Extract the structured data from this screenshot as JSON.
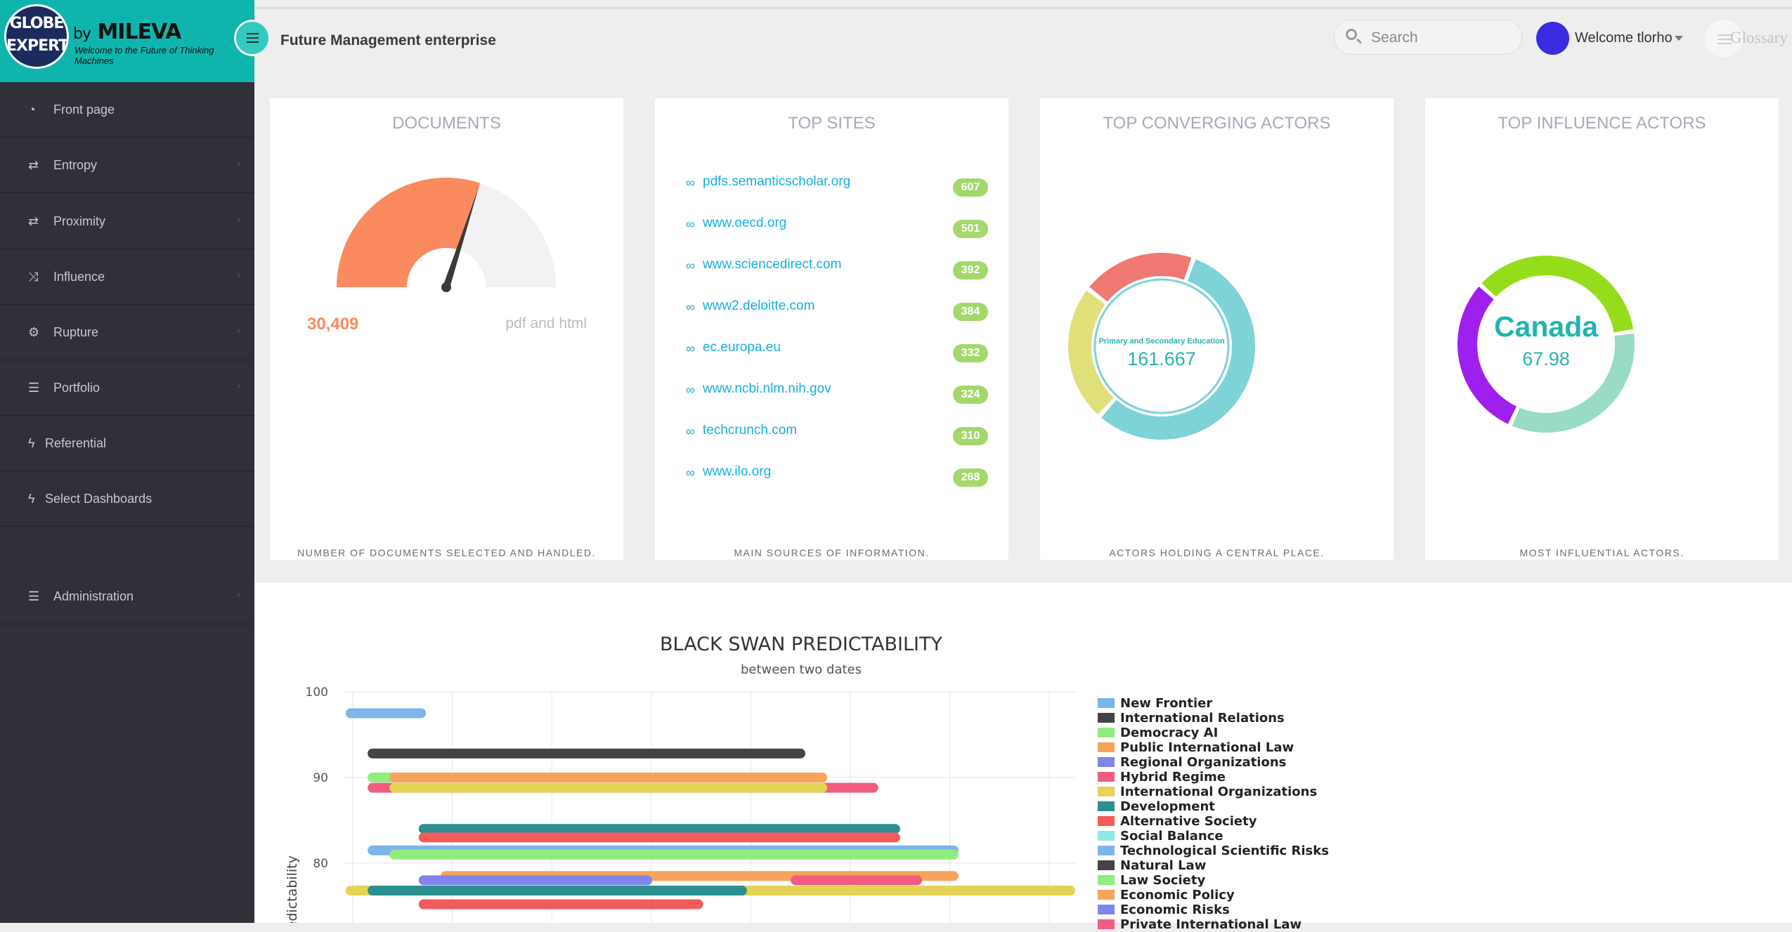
{
  "logo": {
    "globe_text_top": "GLOBE",
    "globe_text_bottom": "EXPERT",
    "by": "by",
    "brand": "MILEVA",
    "tagline": "Welcome to the Future of Thinking Machines"
  },
  "sidebar": {
    "items": [
      {
        "label": "Front page",
        "icon": "dashboard-icon",
        "chevron": false
      },
      {
        "label": "Entropy",
        "icon": "retweet-icon",
        "chevron": true
      },
      {
        "label": "Proximity",
        "icon": "retweet-icon",
        "chevron": true
      },
      {
        "label": "Influence",
        "icon": "random-icon",
        "chevron": true
      },
      {
        "label": "Rupture",
        "icon": "cogs-icon",
        "chevron": true
      },
      {
        "label": "Portfolio",
        "icon": "server-icon",
        "chevron": true
      },
      {
        "label": "Referential",
        "icon": "bolt-icon",
        "chevron": false
      },
      {
        "label": "Select Dashboards",
        "icon": "bolt-icon",
        "chevron": false
      },
      {
        "label": "Administration",
        "icon": "server-icon",
        "chevron": true
      }
    ]
  },
  "header": {
    "title": "Future Management enterprise",
    "search_placeholder": "Search",
    "welcome": "Welcome tlorho",
    "glossary": "Glossary"
  },
  "cards": {
    "documents": {
      "title": "DOCUMENTS",
      "value": "30,409",
      "unit": "pdf and html",
      "footer": "NUMBER OF DOCUMENTS SELECTED AND HANDLED.",
      "gauge_fraction": 0.6
    },
    "top_sites": {
      "title": "TOP SITES",
      "footer": "MAIN SOURCES OF INFORMATION.",
      "sites": [
        {
          "name": "pdfs.semanticscholar.org",
          "count": "607"
        },
        {
          "name": "www.oecd.org",
          "count": "501"
        },
        {
          "name": "www.sciencedirect.com",
          "count": "392"
        },
        {
          "name": "www2.deloitte.com",
          "count": "384"
        },
        {
          "name": "ec.europa.eu",
          "count": "332"
        },
        {
          "name": "www.ncbi.nlm.nih.gov",
          "count": "324"
        },
        {
          "name": "techcrunch.com",
          "count": "310"
        },
        {
          "name": "www.ilo.org",
          "count": "268"
        }
      ]
    },
    "converging": {
      "title": "TOP CONVERGING ACTORS",
      "center_label": "Primary and Secondary Education",
      "center_value": "161.667",
      "footer": "ACTORS HOLDING A CENTRAL PLACE.",
      "slices": [
        {
          "value": 0.56,
          "color": "#7dd3d6"
        },
        {
          "value": 0.24,
          "color": "#dfe07a"
        },
        {
          "value": 0.2,
          "color": "#ef7872"
        }
      ]
    },
    "influence": {
      "title": "TOP INFLUENCE ACTORS",
      "center_label": "Canada",
      "center_value": "67.98",
      "footer": "MOST INFLUENTIAL ACTORS.",
      "slices": [
        {
          "value": 0.36,
          "color": "#95dd1a"
        },
        {
          "value": 0.34,
          "color": "#99dcc4"
        },
        {
          "value": 0.3,
          "color": "#9f20ee"
        }
      ]
    }
  },
  "chart_data": {
    "type": "bar",
    "orientation": "horizontal-range",
    "title": "BLACK SWAN PREDICTABILITY",
    "subtitle": "between two dates",
    "ylabel": "Predictability",
    "yticks": [
      "100",
      "90",
      "80"
    ],
    "ylim": [
      70,
      100
    ],
    "grid": true,
    "legend_position": "right",
    "series": [
      {
        "name": "New Frontier",
        "color": "#7db4ec",
        "ranges": [
          [
            0,
            0.11,
            97.5
          ],
          [
            0.03,
            0.84,
            81.5
          ]
        ]
      },
      {
        "name": "International Relations",
        "color": "#434348",
        "ranges": [
          [
            0.03,
            0.63,
            92.8
          ]
        ]
      },
      {
        "name": "Democracy AI",
        "color": "#90ed7d",
        "ranges": [
          [
            0.03,
            0.36,
            90
          ],
          [
            0.06,
            0.84,
            81
          ]
        ]
      },
      {
        "name": "Public International Law",
        "color": "#f7a35c",
        "ranges": [
          [
            0.06,
            0.66,
            90
          ],
          [
            0.13,
            0.84,
            78.5
          ]
        ]
      },
      {
        "name": "Regional Organizations",
        "color": "#8085e9",
        "ranges": [
          [
            0.1,
            0.42,
            78
          ]
        ]
      },
      {
        "name": "Hybrid Regime",
        "color": "#f15c80",
        "ranges": [
          [
            0.03,
            0.73,
            88.8
          ],
          [
            0.61,
            0.79,
            78
          ]
        ]
      },
      {
        "name": "International Organizations",
        "color": "#e4d354",
        "ranges": [
          [
            0.06,
            0.66,
            88.8
          ],
          [
            0,
            1,
            76.8
          ]
        ]
      },
      {
        "name": "Development",
        "color": "#2b908f",
        "ranges": [
          [
            0.1,
            0.76,
            84
          ],
          [
            0.03,
            0.55,
            76.8
          ]
        ]
      },
      {
        "name": "Alternative Society",
        "color": "#f45b5b",
        "ranges": [
          [
            0.1,
            0.76,
            83
          ],
          [
            0.1,
            0.49,
            75.2
          ]
        ]
      },
      {
        "name": "Social Balance",
        "color": "#91e8e1",
        "ranges": []
      },
      {
        "name": "Technological Scientific Risks",
        "color": "#7cb5ec",
        "ranges": []
      },
      {
        "name": "Natural Law",
        "color": "#434348",
        "ranges": []
      },
      {
        "name": "Law Society",
        "color": "#90ed7d",
        "ranges": []
      },
      {
        "name": "Economic Policy",
        "color": "#f7a35c",
        "ranges": []
      },
      {
        "name": "Economic Risks",
        "color": "#8085e9",
        "ranges": []
      },
      {
        "name": "Private International Law",
        "color": "#f15c80",
        "ranges": []
      }
    ]
  }
}
